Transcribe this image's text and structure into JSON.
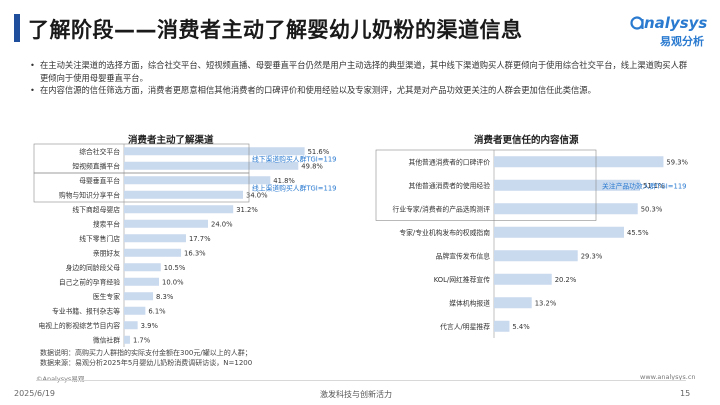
{
  "page": {
    "title": "了解阶段——消费者主动了解婴幼儿奶粉的渠道信息",
    "logo_en": "nalysys",
    "logo_cn": "易观分析",
    "bullets": [
      "在主动关注渠道的选择方面，综合社交平台、短视频直播、母婴垂直平台仍然是用户主动选择的典型渠道，其中线下渠道购买人群更倾向于使用综合社交平台，线上渠道购买人群更倾向于使用母婴垂直平台。",
      "在内容信源的信任筛选方面，消费者更愿意相信其他消费者的口碑评价和使用经验以及专家测评，尤其是对产品功效更关注的人群会更加信任此类信源。"
    ],
    "footer_note_1": "数据说明：高购买力人群指的实际支付金额在300元/罐以上的人群；",
    "footer_note_2": "数据来源：易观分析2025年5月婴幼儿奶粉消费调研访谈，N=1200",
    "copyright": "©Analysys易观",
    "website": "www.analysys.cn",
    "date": "2025/6/19",
    "slogan": "激发科技与创新活力",
    "page_number": "15"
  },
  "colors": {
    "bar": "#c9d9ee",
    "accent": "#2a7ad0",
    "title_bar": "#1f4e9c"
  },
  "chart_data": [
    {
      "type": "bar",
      "orientation": "horizontal",
      "title": "消费者主动了解渠道",
      "categories": [
        "综合社交平台",
        "短视频直播平台",
        "母婴垂直平台",
        "购物与知识分享平台",
        "线下商超母婴店",
        "搜索平台",
        "线下零售门店",
        "亲朋好友",
        "身边的同龄段父母",
        "自己之前的孕育经验",
        "医生专家",
        "专业书籍、报刊杂志等",
        "电视上的影视综艺节目内容",
        "微信社群"
      ],
      "values": [
        51.6,
        49.8,
        41.8,
        34.0,
        31.2,
        24.0,
        17.7,
        16.3,
        10.5,
        10.0,
        8.3,
        6.1,
        3.9,
        1.7
      ],
      "value_labels": [
        "51.6%",
        "49.8%",
        "41.8%",
        "34.0%",
        "31.2%",
        "24.0%",
        "17.7%",
        "16.3%",
        "10.5%",
        "10.0%",
        "8.3%",
        "6.1%",
        "3.9%",
        "1.7%"
      ],
      "xlim": [
        0,
        60
      ],
      "annotations": [
        {
          "text": "线下渠道购买人群TGI=119",
          "rows": [
            0,
            1
          ]
        },
        {
          "text": "线上渠道购买人群TGI=119",
          "rows": [
            2,
            3
          ]
        }
      ]
    },
    {
      "type": "bar",
      "orientation": "horizontal",
      "title": "消费者更信任的内容信源",
      "categories": [
        "其他普通消费者的口碑评价",
        "其他普通消费者的使用经验",
        "行业专家/消费者的产品选购测评",
        "专家/专业机构发布的权威指南",
        "品牌宣传发布信息",
        "KOL/网红推荐宣传",
        "媒体机构报道",
        "代言人/明星推荐"
      ],
      "values": [
        59.3,
        51.1,
        50.3,
        45.5,
        29.3,
        20.2,
        13.2,
        5.4
      ],
      "value_labels": [
        "59.3%",
        "51.1%",
        "50.3%",
        "45.5%",
        "29.3%",
        "20.2%",
        "13.2%",
        "5.4%"
      ],
      "xlim": [
        0,
        70
      ],
      "annotations": [
        {
          "text": "关注产品功效人群TGI=119",
          "rows": [
            0,
            2
          ]
        }
      ]
    }
  ]
}
